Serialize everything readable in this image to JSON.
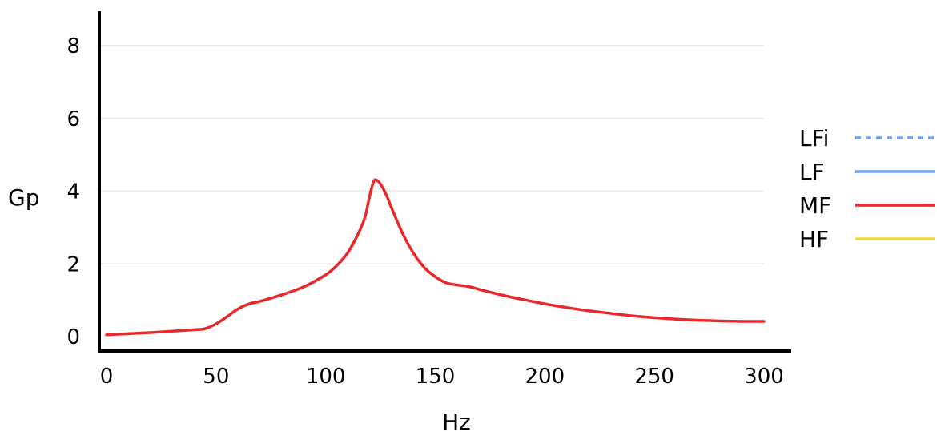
{
  "chart_data": {
    "type": "line",
    "xlabel": "Hz",
    "ylabel": "Gp",
    "xlim": [
      0,
      300
    ],
    "ylim": [
      0,
      8.5
    ],
    "x_ticks": [
      0,
      50,
      100,
      150,
      200,
      250,
      300
    ],
    "y_ticks": [
      0,
      2,
      4,
      6,
      8
    ],
    "grid": "horizontal",
    "legend_position": "right",
    "series": [
      {
        "name": "LFi",
        "color": "#6fa3ef",
        "style": "dashed",
        "x": [],
        "y": []
      },
      {
        "name": "LF",
        "color": "#6fa3ef",
        "style": "solid",
        "x": [],
        "y": []
      },
      {
        "name": "MF",
        "color": "#e8282b",
        "style": "solid",
        "x": [
          0,
          10,
          20,
          30,
          40,
          45,
          50,
          55,
          60,
          65,
          70,
          80,
          90,
          100,
          105,
          110,
          115,
          118,
          120,
          122,
          124,
          126,
          128,
          130,
          135,
          140,
          145,
          150,
          155,
          160,
          165,
          170,
          180,
          190,
          200,
          210,
          220,
          230,
          240,
          250,
          260,
          270,
          280,
          290,
          300
        ],
        "y": [
          0.05,
          0.08,
          0.11,
          0.15,
          0.19,
          0.22,
          0.35,
          0.55,
          0.76,
          0.9,
          0.97,
          1.15,
          1.37,
          1.7,
          1.95,
          2.3,
          2.85,
          3.3,
          3.85,
          4.28,
          4.27,
          4.1,
          3.85,
          3.55,
          2.85,
          2.3,
          1.9,
          1.65,
          1.48,
          1.42,
          1.38,
          1.3,
          1.15,
          1.02,
          0.9,
          0.8,
          0.71,
          0.64,
          0.57,
          0.52,
          0.48,
          0.45,
          0.43,
          0.42,
          0.42
        ]
      },
      {
        "name": "HF",
        "color": "#f0d93a",
        "style": "solid",
        "x": [],
        "y": []
      }
    ]
  }
}
